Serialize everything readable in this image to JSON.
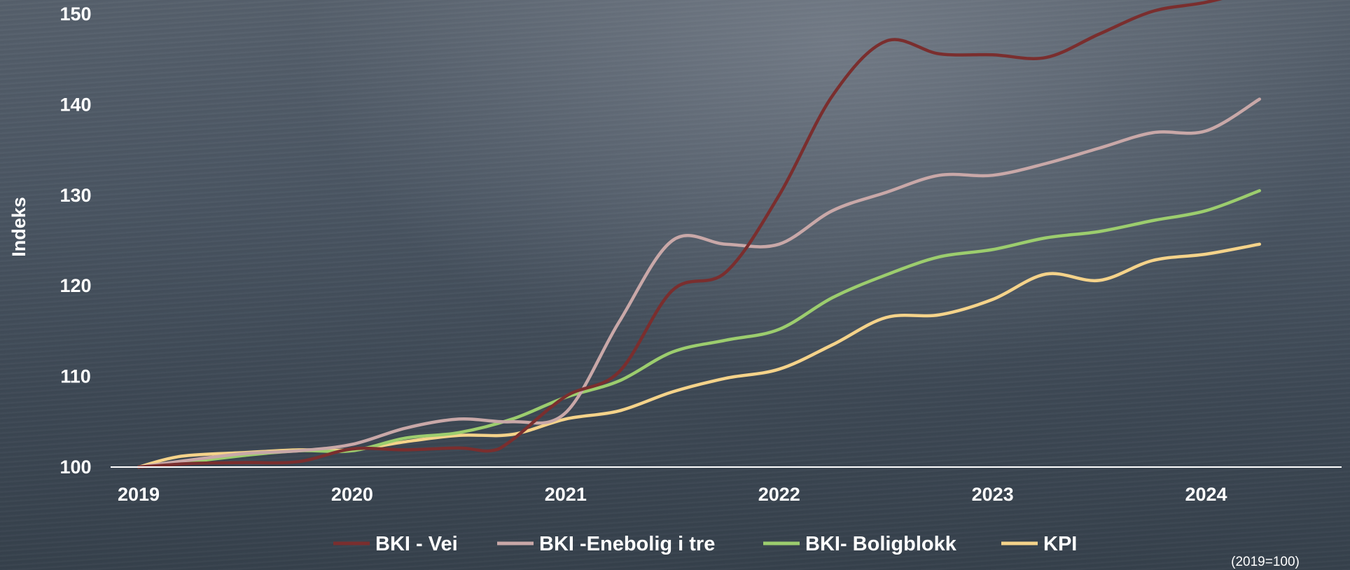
{
  "chart_data": {
    "type": "line",
    "title": "",
    "xlabel": "",
    "ylabel": "Indeks",
    "note": "(2019=100)",
    "xlim": [
      2019,
      2024.5
    ],
    "ylim": [
      100,
      152
    ],
    "yticks": [
      100,
      110,
      120,
      130,
      140,
      150
    ],
    "xticks": [
      2019,
      2020,
      2021,
      2022,
      2023,
      2024
    ],
    "grid": false,
    "legend": "bottom",
    "series": [
      {
        "name": "BKI - Vei",
        "color": "#7a2e2e",
        "x": [
          2019,
          2019.25,
          2019.5,
          2019.75,
          2020,
          2020.25,
          2020.5,
          2020.65,
          2020.75,
          2021,
          2021.25,
          2021.5,
          2021.75,
          2022,
          2022.25,
          2022.5,
          2022.75,
          2023,
          2023.25,
          2023.5,
          2023.75,
          2024,
          2024.25
        ],
        "values": [
          100,
          100.4,
          100.5,
          100.6,
          102,
          101.9,
          102.1,
          101.8,
          103,
          107.8,
          110.5,
          119.5,
          121.5,
          130,
          141,
          147,
          145.6,
          145.5,
          145.2,
          147.8,
          150.3,
          151.3,
          152.8
        ]
      },
      {
        "name": "BKI -Enebolig i tre",
        "color": "#c9a8a8",
        "x": [
          2019,
          2019.25,
          2019.5,
          2019.75,
          2020,
          2020.25,
          2020.5,
          2020.75,
          2021,
          2021.25,
          2021.5,
          2021.75,
          2022,
          2022.25,
          2022.5,
          2022.75,
          2023,
          2023.25,
          2023.5,
          2023.75,
          2024,
          2024.25
        ],
        "values": [
          100,
          100.8,
          101.5,
          101.8,
          102.5,
          104.3,
          105.3,
          105,
          106,
          116,
          125,
          124.6,
          124.6,
          128.3,
          130.3,
          132.2,
          132.2,
          133.5,
          135.2,
          136.9,
          137.1,
          140.6
        ]
      },
      {
        "name": "BKI- Boligblokk",
        "color": "#9ccd6e",
        "x": [
          2019,
          2019.25,
          2019.5,
          2019.75,
          2020,
          2020.25,
          2020.5,
          2020.75,
          2021,
          2021.25,
          2021.5,
          2021.75,
          2022,
          2022.25,
          2022.5,
          2022.75,
          2023,
          2023.25,
          2023.5,
          2023.75,
          2024,
          2024.25
        ],
        "values": [
          100,
          100.6,
          101.3,
          101.8,
          101.8,
          103.2,
          103.8,
          105.3,
          107.7,
          109.5,
          112.7,
          114,
          115.2,
          118.7,
          121.2,
          123.2,
          124,
          125.3,
          126,
          127.2,
          128.3,
          130.5
        ]
      },
      {
        "name": "KPI",
        "color": "#f5d38a",
        "x": [
          2019,
          2019.2,
          2019.5,
          2019.75,
          2020,
          2020.25,
          2020.5,
          2020.75,
          2021,
          2021.25,
          2021.5,
          2021.75,
          2022,
          2022.25,
          2022.5,
          2022.75,
          2023,
          2023.25,
          2023.5,
          2023.75,
          2024,
          2024.25
        ],
        "values": [
          100,
          101.2,
          101.6,
          101.9,
          101.9,
          102.8,
          103.5,
          103.6,
          105.3,
          106.2,
          108.3,
          109.8,
          110.8,
          113.5,
          116.5,
          116.8,
          118.5,
          121.3,
          120.6,
          122.8,
          123.5,
          124.6
        ]
      }
    ]
  }
}
